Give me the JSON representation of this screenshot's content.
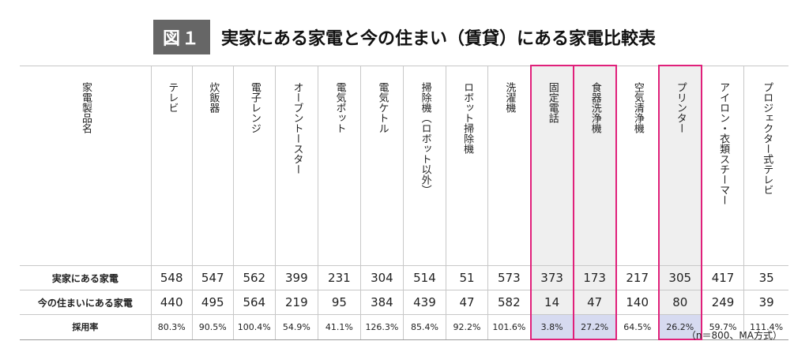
{
  "figure": {
    "label": "図１",
    "title": "実家にある家電と今の住まい（賃貸）にある家電比較表"
  },
  "table": {
    "header_label": "家電製品名",
    "columns": [
      {
        "name": "テレビ",
        "highlight": false
      },
      {
        "name": "炊飯器",
        "highlight": false
      },
      {
        "name": "電子レンジ",
        "highlight": false
      },
      {
        "name": "オーブントースター",
        "highlight": false
      },
      {
        "name": "電気ポット",
        "highlight": false
      },
      {
        "name": "電気ケトル",
        "highlight": false
      },
      {
        "name": "掃除機（ロボット以外）",
        "highlight": false
      },
      {
        "name": "ロボット掃除機",
        "highlight": false
      },
      {
        "name": "洗濯機",
        "highlight": false
      },
      {
        "name": "固定電話",
        "highlight": true
      },
      {
        "name": "食器洗浄機",
        "highlight": true
      },
      {
        "name": "空気清浄機",
        "highlight": false
      },
      {
        "name": "プリンター",
        "highlight": true
      },
      {
        "name": "アイロン・衣類スチーマー",
        "highlight": false
      },
      {
        "name": "プロジェクター式テレビ",
        "highlight": false
      }
    ],
    "rows": [
      {
        "label": "実家にある家電",
        "values": [
          "548",
          "547",
          "562",
          "399",
          "231",
          "304",
          "514",
          "51",
          "573",
          "373",
          "173",
          "217",
          "305",
          "417",
          "35"
        ]
      },
      {
        "label": "今の住まいにある家電",
        "values": [
          "440",
          "495",
          "564",
          "219",
          "95",
          "384",
          "439",
          "47",
          "582",
          "14",
          "47",
          "140",
          "80",
          "249",
          "39"
        ]
      },
      {
        "label": "採用率",
        "values": [
          "80.3%",
          "90.5%",
          "100.4%",
          "54.9%",
          "41.1%",
          "126.3%",
          "85.4%",
          "92.2%",
          "101.6%",
          "3.8%",
          "27.2%",
          "64.5%",
          "26.2%",
          "59.7%",
          "111.4%"
        ]
      }
    ],
    "highlight_colors": {
      "border": "#e0207a",
      "cell_bg": "#efefef",
      "rate_bg": "#d6daf0"
    }
  },
  "note": "（n＝800、MA方式）"
}
